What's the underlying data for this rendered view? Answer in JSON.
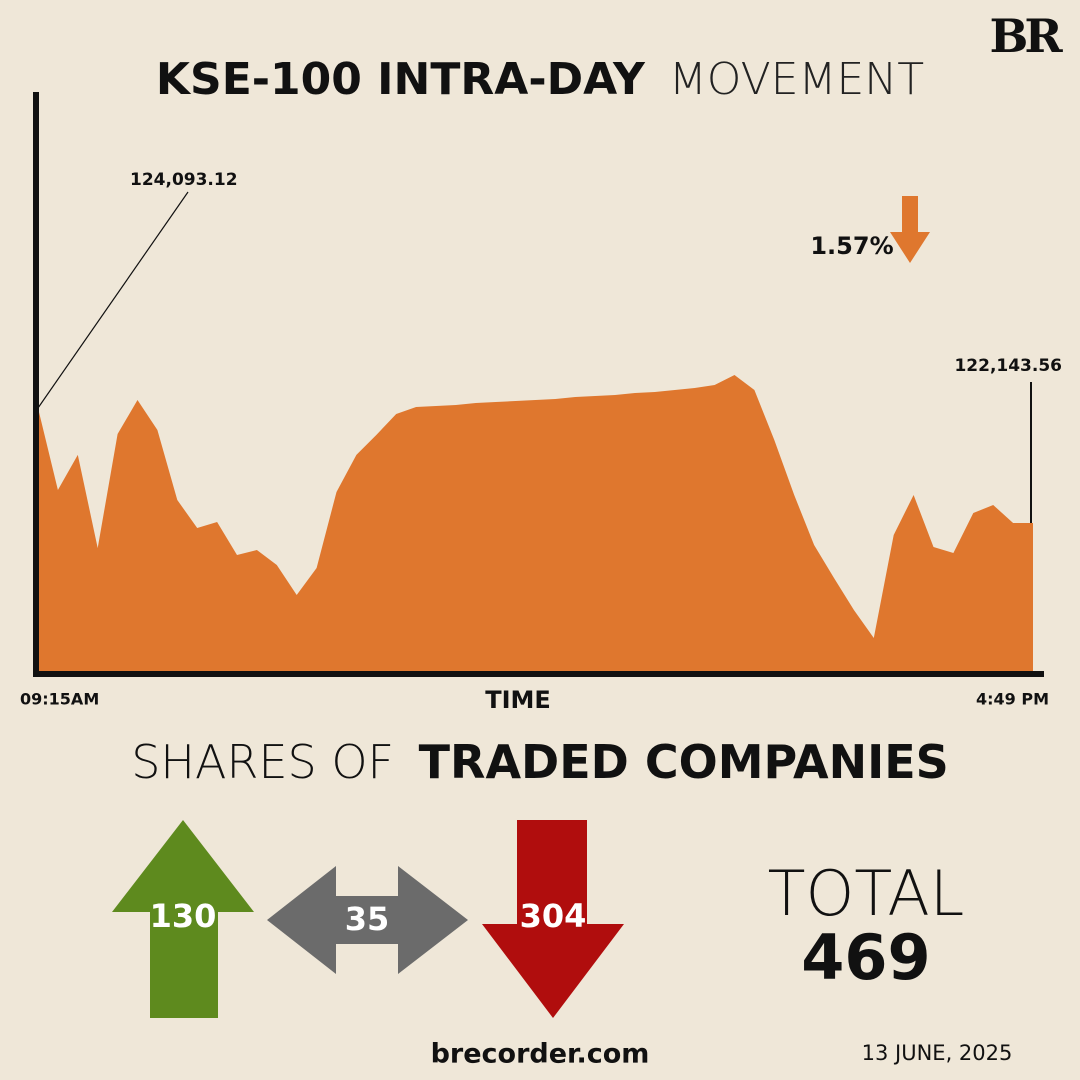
{
  "brand": "BR",
  "chart_data": {
    "type": "area",
    "title": "KSE-100 INTRA-DAY",
    "title_suffix": "MOVEMENT",
    "xlabel": "TIME",
    "categories": [
      "09:15AM",
      null,
      null,
      null,
      null,
      null,
      null,
      null,
      null,
      null,
      null,
      null,
      null,
      null,
      null,
      null,
      null,
      null,
      null,
      null,
      null,
      null,
      null,
      null,
      null,
      null,
      null,
      null,
      null,
      null,
      null,
      null,
      null,
      null,
      null,
      null,
      null,
      null,
      null,
      null,
      null,
      null,
      null,
      null,
      null,
      null,
      null,
      null,
      null,
      null,
      "4:49 PM"
    ],
    "values": [
      124093.12,
      122703,
      123297,
      121720,
      123652,
      124229,
      123720,
      122534,
      122059,
      122161,
      121601,
      121686,
      121432,
      120923,
      121381,
      122669,
      123297,
      123635,
      123991,
      124110,
      124127,
      124144,
      124178,
      124195,
      124212,
      124229,
      124246,
      124280,
      124296,
      124313,
      124347,
      124364,
      124398,
      124432,
      124483,
      124652,
      124398,
      123550,
      122618,
      121771,
      121211,
      120669,
      120194,
      121940,
      122618,
      121737,
      121635,
      122313,
      122449,
      122144,
      122143.56
    ],
    "value_labels": [
      "124,093.12",
      null,
      null,
      null,
      null,
      null,
      null,
      null,
      null,
      null,
      null,
      null,
      null,
      null,
      null,
      null,
      null,
      null,
      null,
      null,
      null,
      null,
      null,
      null,
      null,
      null,
      null,
      null,
      null,
      null,
      null,
      null,
      null,
      null,
      null,
      null,
      null,
      null,
      null,
      null,
      null,
      null,
      null,
      null,
      null,
      null,
      null,
      null,
      null,
      null,
      "122,143.56"
    ],
    "color": "#df772e",
    "ylim": [
      119618,
      129398
    ],
    "change_label": "1.57%"
  },
  "shares": {
    "title_light": "SHARES OF",
    "title_bold": "TRADED COMPANIES",
    "advanced": 130,
    "unchanged": 35,
    "declined": 304,
    "total_label": "TOTAL",
    "total": 469
  },
  "footer": {
    "site": "brecorder.com",
    "date": "13 JUNE, 2025"
  }
}
